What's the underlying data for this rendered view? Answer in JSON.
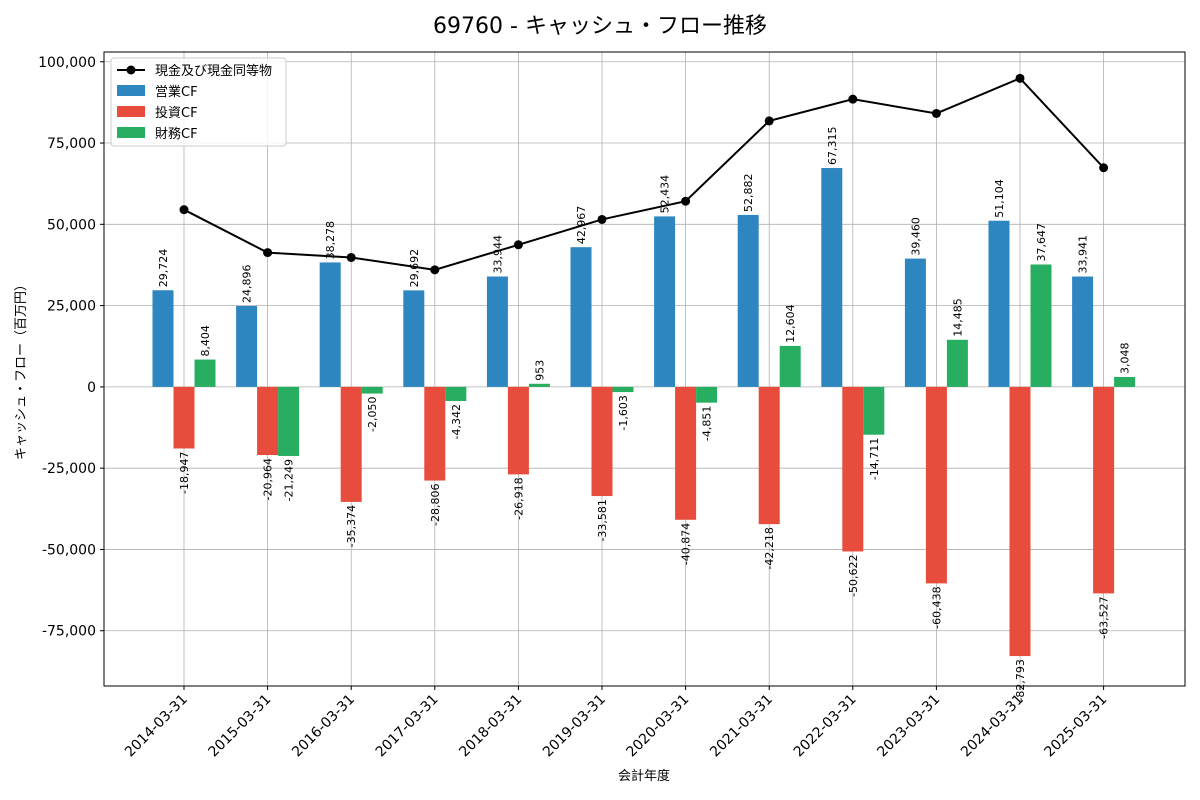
{
  "chart_data": {
    "type": "bar+line",
    "title": "69760 - キャッシュ・フロー推移",
    "xlabel": "会計年度",
    "ylabel": "キャッシュ・フロー（百万円）",
    "categories": [
      "2014-03-31",
      "2015-03-31",
      "2016-03-31",
      "2017-03-31",
      "2018-03-31",
      "2019-03-31",
      "2020-03-31",
      "2021-03-31",
      "2022-03-31",
      "2023-03-31",
      "2024-03-31",
      "2025-03-31"
    ],
    "ylim": [
      -92000,
      103000
    ],
    "yticks": [
      -75000,
      -50000,
      -25000,
      0,
      25000,
      50000,
      75000,
      100000
    ],
    "ytick_labels": [
      "-75,000",
      "-50,000",
      "-25,000",
      "0",
      "25,000",
      "50,000",
      "75,000",
      "100,000"
    ],
    "grid": true,
    "legend_position": "top-left",
    "line": {
      "name": "現金及び現金同等物",
      "color": "#000000",
      "values": [
        54500,
        41300,
        39800,
        36000,
        43700,
        51500,
        57100,
        81800,
        88500,
        84100,
        94900,
        67400
      ]
    },
    "series": [
      {
        "name": "営業CF",
        "color": "#2e86c1",
        "values": [
          29724,
          24896,
          38278,
          29692,
          33944,
          42967,
          52434,
          52882,
          67315,
          39460,
          51104,
          33941
        ],
        "labels": [
          "29,724",
          "24,896",
          "38,278",
          "29,692",
          "33,944",
          "42,967",
          "52,434",
          "52,882",
          "67,315",
          "39,460",
          "51,104",
          "33,941"
        ]
      },
      {
        "name": "投資CF",
        "color": "#e74c3c",
        "values": [
          -18947,
          -20964,
          -35374,
          -28806,
          -26918,
          -33581,
          -40874,
          -42218,
          -50622,
          -60438,
          -82793,
          -63527
        ],
        "labels": [
          "-18,947",
          "-20,964",
          "-35,374",
          "-28,806",
          "-26,918",
          "-33,581",
          "-40,874",
          "-42,218",
          "-50,622",
          "-60,438",
          "-82,793",
          "-63,527"
        ]
      },
      {
        "name": "財務CF",
        "color": "#27ae60",
        "values": [
          8404,
          -21249,
          -2050,
          -4342,
          953,
          -1603,
          -4851,
          12604,
          -14711,
          14485,
          37647,
          3048
        ],
        "labels": [
          "8,404",
          "-21,249",
          "-2,050",
          "-4,342",
          "953",
          "-1,603",
          "-4,851",
          "12,604",
          "-14,711",
          "14,485",
          "37,647",
          "3,048"
        ]
      }
    ]
  }
}
